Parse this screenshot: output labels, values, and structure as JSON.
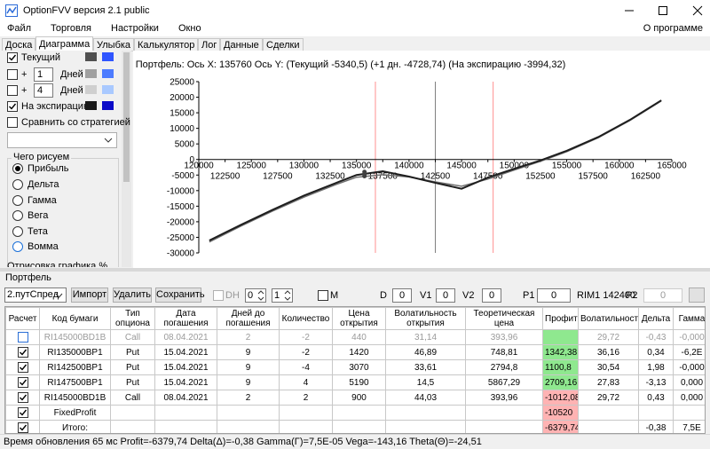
{
  "window": {
    "title": "OptionFVV версия 2.1 public"
  },
  "menu": [
    "Файл",
    "Торговля",
    "Настройки",
    "Окно"
  ],
  "menu_right": "О программе",
  "tabs": [
    "Доска",
    "Диаграмма",
    "Улыбка",
    "Калькулятор",
    "Лог",
    "Данные",
    "Сделки"
  ],
  "active_tab": 1,
  "left_panel": {
    "rows": [
      {
        "checked": true,
        "label": "Текущий",
        "colors": [
          "#505050",
          "#2f55ff"
        ]
      },
      {
        "checked": false,
        "prefix": "+",
        "days": "1",
        "unit": "Дней",
        "colors": [
          "#a0a0a0",
          "#4d7cff"
        ]
      },
      {
        "checked": false,
        "prefix": "+",
        "days": "4",
        "unit": "Дней",
        "colors": [
          "#cfcfcf",
          "#a9c9ff"
        ]
      },
      {
        "checked": true,
        "label": "На экспирацию",
        "colors": [
          "#1a1a1a",
          "#0a0ac8"
        ]
      }
    ],
    "compare": "Сравнить со стратегией",
    "group_title": "Чего рисуем",
    "radios": [
      "Прибыль",
      "Дельта",
      "Гамма",
      "Вега",
      "Тета",
      "Вомма"
    ],
    "selected": 0,
    "cut_label": "Отрисовка графика %"
  },
  "chart_data": {
    "type": "line",
    "title": "Портфель:  Ось X:  135760  Ось Y:  (Текущий -5340,5)  (+1 дн. -4728,74)  (На экспирацию -3994,32)",
    "x": [
      121000,
      124000,
      127000,
      130000,
      133000,
      135000,
      137500,
      140000,
      142500,
      145000,
      147500,
      150000,
      152500,
      155000,
      158000,
      161000,
      164000
    ],
    "series": [
      {
        "name": "Текущий",
        "color": "#707070",
        "values": [
          -26500,
          -21400,
          -16600,
          -12100,
          -8100,
          -5700,
          -4900,
          -5600,
          -7200,
          -8600,
          -6300,
          -3400,
          -600,
          2500,
          7000,
          12500,
          18800
        ]
      },
      {
        "name": "На экспирацию",
        "color": "#1e1e1e",
        "values": [
          -26000,
          -21000,
          -16200,
          -11600,
          -7600,
          -5000,
          -3800,
          -5500,
          -7500,
          -9400,
          -5800,
          -3000,
          -300,
          2800,
          7200,
          12700,
          19000
        ]
      }
    ],
    "xlim": [
      120000,
      165000
    ],
    "ylim": [
      -30000,
      25000
    ],
    "xticks": [
      120000,
      122500,
      125000,
      127500,
      130000,
      132500,
      135000,
      137500,
      140000,
      142500,
      145000,
      147500,
      150000,
      152500,
      155000,
      157500,
      160000,
      162500,
      165000
    ],
    "yticks": [
      -30000,
      -25000,
      -20000,
      -15000,
      -10000,
      -5000,
      0,
      5000,
      10000,
      15000,
      20000,
      25000
    ],
    "grid": false,
    "vlines": [
      {
        "value": 136800,
        "color": "#ff9090"
      },
      {
        "value": 148000,
        "color": "#ff9090"
      },
      {
        "value": 142500,
        "color": "#808080"
      }
    ],
    "cursor": {
      "x": 135760,
      "values": [
        -5340.5,
        -4728.74,
        -3994.32
      ]
    }
  },
  "portfolio": {
    "label": "Портфель",
    "strategy": "2.путСпред",
    "buttons": [
      "Импорт",
      "Удалить",
      "Сохранить"
    ],
    "dh": "DH",
    "spin": [
      "0",
      "1"
    ],
    "m": "M",
    "fields": [
      {
        "label": "D",
        "value": "0"
      },
      {
        "label": "V1",
        "value": "0"
      },
      {
        "label": "V2",
        "value": "0"
      },
      {
        "label": "P1",
        "value": "0"
      }
    ],
    "instrument": "RIM1 142400",
    "p2": {
      "label": "P2",
      "value": "0"
    }
  },
  "table": {
    "headers": [
      "Расчет",
      "Код бумаги",
      "Тип\nопциона",
      "Дата\nпогашения",
      "Дней до\nпогашения",
      "Количество",
      "Цена\nоткрытия",
      "Волатильность\nоткрытия",
      "Теоретическая\nцена",
      "Профит",
      "Волатильность",
      "Дельта",
      "Гамма"
    ],
    "rows": [
      {
        "checked": false,
        "dim": true,
        "profit_bg": "#8fe88f",
        "cells": [
          "RI145000BD1B",
          "Call",
          "08.04.2021",
          "2",
          "-2",
          "440",
          "31,14",
          "393,96",
          null,
          "29,72",
          "-0,43",
          "-0,000"
        ]
      },
      {
        "checked": true,
        "dim": false,
        "profit_bg": "#8fe88f",
        "cells": [
          "RI135000BP1",
          "Put",
          "15.04.2021",
          "9",
          "-2",
          "1420",
          "46,89",
          "748,81",
          "1342,38",
          "36,16",
          "0,34",
          "-6,2E"
        ]
      },
      {
        "checked": true,
        "dim": false,
        "profit_bg": "#8fe88f",
        "cells": [
          "RI142500BP1",
          "Put",
          "15.04.2021",
          "9",
          "-4",
          "3070",
          "33,61",
          "2794,8",
          "1100,8",
          "30,54",
          "1,98",
          "-0,000"
        ]
      },
      {
        "checked": true,
        "dim": false,
        "profit_bg": "#8fe88f",
        "cells": [
          "RI147500BP1",
          "Put",
          "15.04.2021",
          "9",
          "4",
          "5190",
          "14,5",
          "5867,29",
          "2709,16",
          "27,83",
          "-3,13",
          "0,000"
        ]
      },
      {
        "checked": true,
        "dim": false,
        "profit_bg": "#ffb3b3",
        "cells": [
          "RI145000BD1B",
          "Call",
          "08.04.2021",
          "2",
          "2",
          "900",
          "44,03",
          "393,96",
          "-1012,08",
          "29,72",
          "0,43",
          "0,000"
        ]
      },
      {
        "checked": true,
        "dim": false,
        "profit_bg": "#ffb3b3",
        "cells": [
          "FixedProfit",
          null,
          null,
          null,
          null,
          null,
          null,
          null,
          "-10520",
          null,
          null,
          null
        ]
      },
      {
        "checked": true,
        "dim": false,
        "profit_bg": "#ffb3b3",
        "cells": [
          "Итого:",
          null,
          null,
          null,
          null,
          null,
          null,
          null,
          "-6379,74",
          null,
          "-0,38",
          "7,5E"
        ]
      }
    ]
  },
  "status": "Время обновления 65 мс  Profit=-6379,74 Delta(Δ)=-0,38 Gamma(Γ)=7,5E-05 Vega=-143,16 Theta(Θ)=-24,51"
}
